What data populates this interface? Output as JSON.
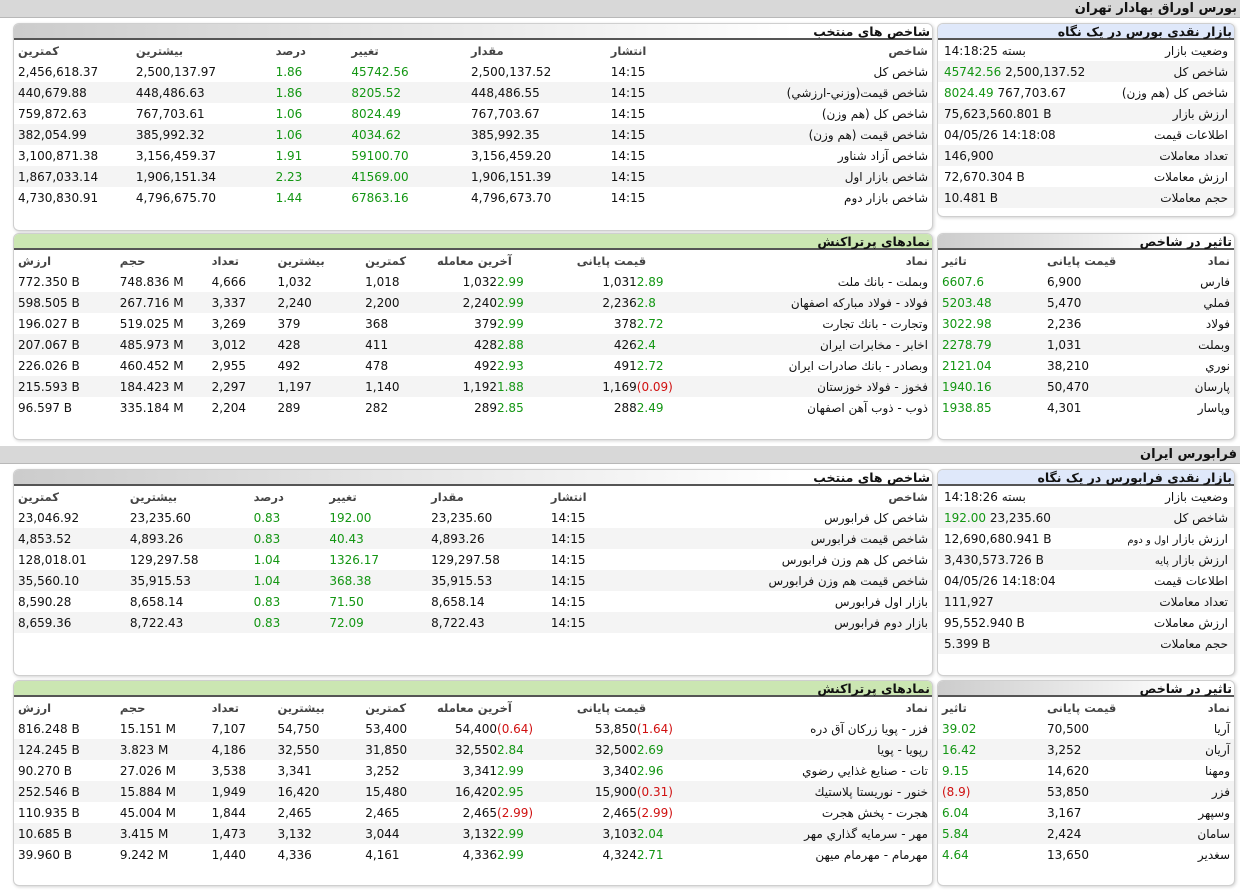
{
  "tse": {
    "section_title": "بورس اوراق بهادار تهران",
    "glance": {
      "title": "بازار نقدی بورس در یک نگاه",
      "rows": [
        {
          "label": "وضعیت بازار",
          "value": "بسته 14:18:25",
          "extra": ""
        },
        {
          "label": "شاخص کل",
          "value": "2,500,137.52",
          "extra": "45742.56"
        },
        {
          "label": "شاخص کل (هم وزن)",
          "value": "767,703.67",
          "extra": "8024.49"
        },
        {
          "label": "ارزش بازار",
          "value": "75,623,560.801 B",
          "extra": ""
        },
        {
          "label": "اطلاعات قیمت",
          "value": "04/05/26 14:18:08",
          "extra": ""
        },
        {
          "label": "تعداد معاملات",
          "value": "146,900",
          "extra": ""
        },
        {
          "label": "ارزش معاملات",
          "value": "72,670.304 B",
          "extra": ""
        },
        {
          "label": "حجم معاملات",
          "value": "10.481 B",
          "extra": ""
        }
      ]
    },
    "indices": {
      "title": "شاخص های منتخب",
      "headers": [
        "شاخص",
        "انتشار",
        "مقدار",
        "تغییر",
        "درصد",
        "بیشترین",
        "کمترین"
      ],
      "rows": [
        {
          "name": "شاخص كل",
          "time": "14:15",
          "value": "2,500,137.52",
          "change": "45742.56",
          "pct": "1.86",
          "max": "2,500,137.97",
          "min": "2,456,618.37"
        },
        {
          "name": "شاخص قيمت(وزني-ارزشي)",
          "time": "14:15",
          "value": "448,486.55",
          "change": "8205.52",
          "pct": "1.86",
          "max": "448,486.63",
          "min": "440,679.88"
        },
        {
          "name": "شاخص كل (هم وزن)",
          "time": "14:15",
          "value": "767,703.67",
          "change": "8024.49",
          "pct": "1.06",
          "max": "767,703.61",
          "min": "759,872.63"
        },
        {
          "name": "شاخص قيمت (هم وزن)",
          "time": "14:15",
          "value": "385,992.35",
          "change": "4034.62",
          "pct": "1.06",
          "max": "385,992.32",
          "min": "382,054.99"
        },
        {
          "name": "شاخص آزاد شناور",
          "time": "14:15",
          "value": "3,156,459.20",
          "change": "59100.70",
          "pct": "1.91",
          "max": "3,156,459.37",
          "min": "3,100,871.38"
        },
        {
          "name": "شاخص بازار اول",
          "time": "14:15",
          "value": "1,906,151.39",
          "change": "41569.00",
          "pct": "2.23",
          "max": "1,906,151.34",
          "min": "1,867,033.14"
        },
        {
          "name": "شاخص بازار دوم",
          "time": "14:15",
          "value": "4,796,673.70",
          "change": "67863.16",
          "pct": "1.44",
          "max": "4,796,675.70",
          "min": "4,730,830.91"
        }
      ]
    },
    "impact": {
      "title": "تاثیر در شاخص",
      "headers": [
        "نماد",
        "قیمت پایانی",
        "تاثیر"
      ],
      "rows": [
        {
          "sym": "فارس",
          "price": "6,900",
          "imp": "6607.6",
          "neg": false
        },
        {
          "sym": "فملي",
          "price": "5,470",
          "imp": "5203.48",
          "neg": false
        },
        {
          "sym": "فولاد",
          "price": "2,236",
          "imp": "3022.98",
          "neg": false
        },
        {
          "sym": "وبملت",
          "price": "1,031",
          "imp": "2278.79",
          "neg": false
        },
        {
          "sym": "نوري",
          "price": "38,210",
          "imp": "2121.04",
          "neg": false
        },
        {
          "sym": "پارسان",
          "price": "50,470",
          "imp": "1940.16",
          "neg": false
        },
        {
          "sym": "وپاسار",
          "price": "4,301",
          "imp": "1938.85",
          "neg": false
        }
      ]
    },
    "active": {
      "title": "نمادهای پرتراکنش",
      "headers": [
        "نماد",
        "قیمت پایانی",
        "آخرین معامله",
        "کمترین",
        "بیشترین",
        "تعداد",
        "حجم",
        "ارزش"
      ],
      "rows": [
        {
          "sym": "وبملت - بانك ملت",
          "close": "1,031",
          "close_pct": "2.89",
          "close_neg": false,
          "last": "1,032",
          "last_pct": "2.99",
          "last_neg": false,
          "min": "1,018",
          "max": "1,032",
          "count": "4,666",
          "vol": "748.836 M",
          "val": "772.350 B"
        },
        {
          "sym": "فولاد - فولاد مباركه اصفهان",
          "close": "2,236",
          "close_pct": "2.8",
          "close_neg": false,
          "last": "2,240",
          "last_pct": "2.99",
          "last_neg": false,
          "min": "2,200",
          "max": "2,240",
          "count": "3,337",
          "vol": "267.716 M",
          "val": "598.505 B"
        },
        {
          "sym": "وتجارت - بانك تجارت",
          "close": "378",
          "close_pct": "2.72",
          "close_neg": false,
          "last": "379",
          "last_pct": "2.99",
          "last_neg": false,
          "min": "368",
          "max": "379",
          "count": "3,269",
          "vol": "519.025 M",
          "val": "196.027 B"
        },
        {
          "sym": "اخابر - مخابرات ايران",
          "close": "426",
          "close_pct": "2.4",
          "close_neg": false,
          "last": "428",
          "last_pct": "2.88",
          "last_neg": false,
          "min": "411",
          "max": "428",
          "count": "3,012",
          "vol": "485.973 M",
          "val": "207.067 B"
        },
        {
          "sym": "وبصادر - بانك صادرات ايران",
          "close": "491",
          "close_pct": "2.72",
          "close_neg": false,
          "last": "492",
          "last_pct": "2.93",
          "last_neg": false,
          "min": "478",
          "max": "492",
          "count": "2,955",
          "vol": "460.452 M",
          "val": "226.026 B"
        },
        {
          "sym": "فخوز - فولاد خوزستان",
          "close": "1,169",
          "close_pct": "(0.09)",
          "close_neg": true,
          "last": "1,192",
          "last_pct": "1.88",
          "last_neg": false,
          "min": "1,140",
          "max": "1,197",
          "count": "2,297",
          "vol": "184.423 M",
          "val": "215.593 B"
        },
        {
          "sym": "ذوب - ذوب آهن اصفهان",
          "close": "288",
          "close_pct": "2.49",
          "close_neg": false,
          "last": "289",
          "last_pct": "2.85",
          "last_neg": false,
          "min": "282",
          "max": "289",
          "count": "2,204",
          "vol": "335.184 M",
          "val": "96.597 B"
        }
      ]
    }
  },
  "ifb": {
    "section_title": "فرابورس ایران",
    "glance": {
      "title": "بازار نقدی فرابورس در یک نگاه",
      "rows": [
        {
          "label": "وضعیت بازار",
          "value": "بسته 14:18:26",
          "extra": "",
          "small": ""
        },
        {
          "label": "شاخص کل",
          "value": "23,235.60",
          "extra": "192.00",
          "small": ""
        },
        {
          "label": "ارزش بازار",
          "value": "12,690,680.941 B",
          "extra": "",
          "small": "اول و دوم"
        },
        {
          "label": "ارزش بازار",
          "value": "3,430,573.726 B",
          "extra": "",
          "small": "پایه"
        },
        {
          "label": "اطلاعات قیمت",
          "value": "04/05/26 14:18:04",
          "extra": "",
          "small": ""
        },
        {
          "label": "تعداد معاملات",
          "value": "111,927",
          "extra": "",
          "small": ""
        },
        {
          "label": "ارزش معاملات",
          "value": "95,552.940 B",
          "extra": "",
          "small": ""
        },
        {
          "label": "حجم معاملات",
          "value": "5.399 B",
          "extra": "",
          "small": ""
        }
      ]
    },
    "indices": {
      "title": "شاخص های منتخب",
      "headers": [
        "شاخص",
        "انتشار",
        "مقدار",
        "تغییر",
        "درصد",
        "بیشترین",
        "کمترین"
      ],
      "rows": [
        {
          "name": "شاخص كل فرابورس",
          "time": "14:15",
          "value": "23,235.60",
          "change": "192.00",
          "pct": "0.83",
          "max": "23,235.60",
          "min": "23,046.92"
        },
        {
          "name": "شاخص قيمت فرابورس",
          "time": "14:15",
          "value": "4,893.26",
          "change": "40.43",
          "pct": "0.83",
          "max": "4,893.26",
          "min": "4,853.52"
        },
        {
          "name": "شاخص كل هم وزن فرابورس",
          "time": "14:15",
          "value": "129,297.58",
          "change": "1326.17",
          "pct": "1.04",
          "max": "129,297.58",
          "min": "128,018.01"
        },
        {
          "name": "شاخص قيمت هم وزن فرابورس",
          "time": "14:15",
          "value": "35,915.53",
          "change": "368.38",
          "pct": "1.04",
          "max": "35,915.53",
          "min": "35,560.10"
        },
        {
          "name": "بازار اول فرابورس",
          "time": "14:15",
          "value": "8,658.14",
          "change": "71.50",
          "pct": "0.83",
          "max": "8,658.14",
          "min": "8,590.28"
        },
        {
          "name": "بازار دوم فرابورس",
          "time": "14:15",
          "value": "8,722.43",
          "change": "72.09",
          "pct": "0.83",
          "max": "8,722.43",
          "min": "8,659.36"
        }
      ]
    },
    "impact": {
      "title": "تاثیر در شاخص",
      "headers": [
        "نماد",
        "قیمت پایانی",
        "تاثیر"
      ],
      "rows": [
        {
          "sym": "آريا",
          "price": "70,500",
          "imp": "39.02",
          "neg": false
        },
        {
          "sym": "آريان",
          "price": "3,252",
          "imp": "16.42",
          "neg": false
        },
        {
          "sym": "ومهنا",
          "price": "14,620",
          "imp": "9.15",
          "neg": false
        },
        {
          "sym": "فزر",
          "price": "53,850",
          "imp": "(8.9)",
          "neg": true
        },
        {
          "sym": "وسپهر",
          "price": "3,167",
          "imp": "6.04",
          "neg": false
        },
        {
          "sym": "سامان",
          "price": "2,424",
          "imp": "5.84",
          "neg": false
        },
        {
          "sym": "سغدير",
          "price": "13,650",
          "imp": "4.64",
          "neg": false
        }
      ]
    },
    "active": {
      "title": "نمادهای پرتراکنش",
      "headers": [
        "نماد",
        "قیمت پایانی",
        "آخرین معامله",
        "کمترین",
        "بیشترین",
        "تعداد",
        "حجم",
        "ارزش"
      ],
      "rows": [
        {
          "sym": "فزر - پويا زركان آق دره",
          "close": "53,850",
          "close_pct": "(1.64)",
          "close_neg": true,
          "last": "54,400",
          "last_pct": "(0.64)",
          "last_neg": true,
          "min": "53,400",
          "max": "54,750",
          "count": "7,107",
          "vol": "15.151 M",
          "val": "816.248 B"
        },
        {
          "sym": "رپويا - پويا",
          "close": "32,500",
          "close_pct": "2.69",
          "close_neg": false,
          "last": "32,550",
          "last_pct": "2.84",
          "last_neg": false,
          "min": "31,850",
          "max": "32,550",
          "count": "4,186",
          "vol": "3.823 M",
          "val": "124.245 B"
        },
        {
          "sym": "تات - صنايع غذايي رضوي",
          "close": "3,340",
          "close_pct": "2.96",
          "close_neg": false,
          "last": "3,341",
          "last_pct": "2.99",
          "last_neg": false,
          "min": "3,252",
          "max": "3,341",
          "count": "3,538",
          "vol": "27.026 M",
          "val": "90.270 B"
        },
        {
          "sym": "خنور - نوريستا پلاستيك",
          "close": "15,900",
          "close_pct": "(0.31)",
          "close_neg": true,
          "last": "16,420",
          "last_pct": "2.95",
          "last_neg": false,
          "min": "15,480",
          "max": "16,420",
          "count": "1,949",
          "vol": "15.884 M",
          "val": "252.546 B"
        },
        {
          "sym": "هجرت - پخش هجرت",
          "close": "2,465",
          "close_pct": "(2.99)",
          "close_neg": true,
          "last": "2,465",
          "last_pct": "(2.99)",
          "last_neg": true,
          "min": "2,465",
          "max": "2,465",
          "count": "1,844",
          "vol": "45.004 M",
          "val": "110.935 B"
        },
        {
          "sym": "مهر - سرمايه گذاري مهر",
          "close": "3,103",
          "close_pct": "2.04",
          "close_neg": false,
          "last": "3,132",
          "last_pct": "2.99",
          "last_neg": false,
          "min": "3,044",
          "max": "3,132",
          "count": "1,473",
          "vol": "3.415 M",
          "val": "10.685 B"
        },
        {
          "sym": "مهرمام - مهرمام ميهن",
          "close": "4,324",
          "close_pct": "2.71",
          "close_neg": false,
          "last": "4,336",
          "last_pct": "2.99",
          "last_neg": false,
          "min": "4,161",
          "max": "4,336",
          "count": "1,440",
          "vol": "9.242 M",
          "val": "39.960 B"
        }
      ]
    }
  },
  "colors": {
    "positive": "#139613",
    "negative": "#d01010",
    "header_blue": "#dfe8fa",
    "header_green": "#cbe6b2"
  }
}
